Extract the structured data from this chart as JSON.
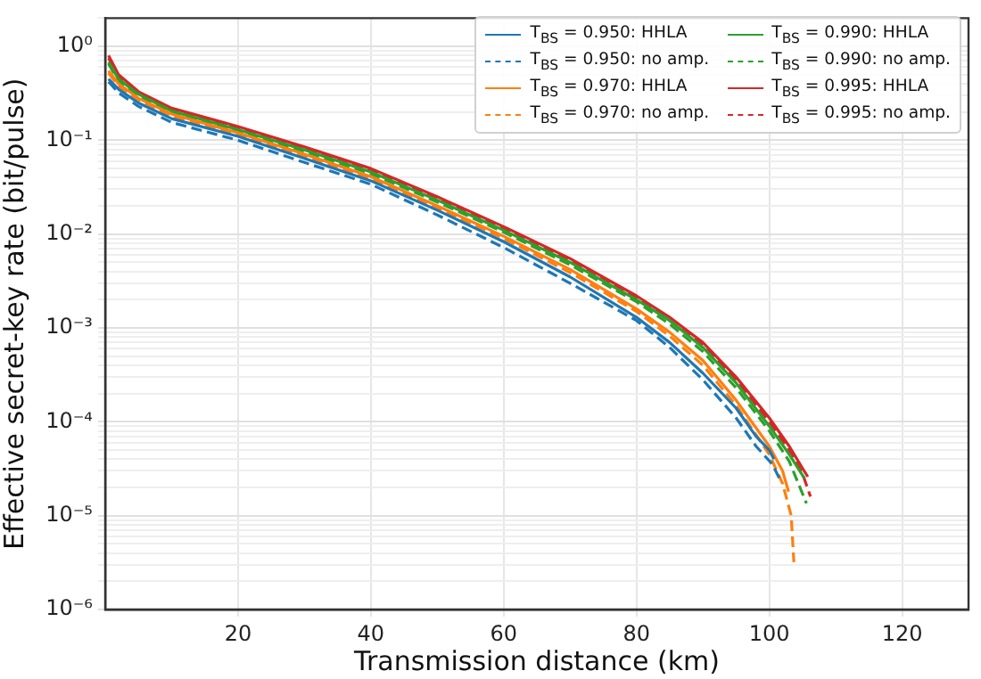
{
  "chart_data": {
    "type": "line",
    "xlabel": "Transmission distance (km)",
    "ylabel": "Effective secret-key rate (bit/pulse)",
    "xlim": [
      0,
      130
    ],
    "xticks": [
      20,
      40,
      60,
      80,
      100,
      120
    ],
    "ylim": [
      1e-06,
      2
    ],
    "log": "y",
    "yticks": [
      {
        "value": 1e-06,
        "label": "10⁻⁶"
      },
      {
        "value": 1e-05,
        "label": "10⁻⁵"
      },
      {
        "value": 0.0001,
        "label": "10⁻⁴"
      },
      {
        "value": 0.001,
        "label": "10⁻³"
      },
      {
        "value": 0.01,
        "label": "10⁻²"
      },
      {
        "value": 0.1,
        "label": "10⁻¹"
      },
      {
        "value": 1,
        "label": "10⁰"
      },
      {
        "value": 2e-06,
        "label": null
      },
      {
        "value": 3e-06,
        "label": null
      },
      {
        "value": 4e-06,
        "label": null
      },
      {
        "value": 5e-06,
        "label": null
      },
      {
        "value": 6e-06,
        "label": null
      },
      {
        "value": 7e-06,
        "label": null
      },
      {
        "value": 8e-06,
        "label": null
      },
      {
        "value": 9e-06,
        "label": null
      },
      {
        "value": 2e-05,
        "label": null
      },
      {
        "value": 3e-05,
        "label": null
      },
      {
        "value": 4e-05,
        "label": null
      },
      {
        "value": 5e-05,
        "label": null
      },
      {
        "value": 6e-05,
        "label": null
      },
      {
        "value": 7e-05,
        "label": null
      },
      {
        "value": 8e-05,
        "label": null
      },
      {
        "value": 9e-05,
        "label": null
      },
      {
        "value": 0.0002,
        "label": null
      },
      {
        "value": 0.0003,
        "label": null
      },
      {
        "value": 0.0004,
        "label": null
      },
      {
        "value": 0.0005,
        "label": null
      },
      {
        "value": 0.0006,
        "label": null
      },
      {
        "value": 0.0007,
        "label": null
      },
      {
        "value": 0.0008,
        "label": null
      },
      {
        "value": 0.0009,
        "label": null
      },
      {
        "value": 0.002,
        "label": null
      },
      {
        "value": 0.003,
        "label": null
      },
      {
        "value": 0.004,
        "label": null
      },
      {
        "value": 0.005,
        "label": null
      },
      {
        "value": 0.006,
        "label": null
      },
      {
        "value": 0.007,
        "label": null
      },
      {
        "value": 0.008,
        "label": null
      },
      {
        "value": 0.009,
        "label": null
      },
      {
        "value": 0.02,
        "label": null
      },
      {
        "value": 0.03,
        "label": null
      },
      {
        "value": 0.04,
        "label": null
      },
      {
        "value": 0.05,
        "label": null
      },
      {
        "value": 0.06,
        "label": null
      },
      {
        "value": 0.07,
        "label": null
      },
      {
        "value": 0.08,
        "label": null
      },
      {
        "value": 0.09,
        "label": null
      },
      {
        "value": 0.2,
        "label": null
      },
      {
        "value": 0.3,
        "label": null
      },
      {
        "value": 0.4,
        "label": null
      },
      {
        "value": 0.5,
        "label": null
      },
      {
        "value": 0.6,
        "label": null
      },
      {
        "value": 0.7,
        "label": null
      },
      {
        "value": 0.8,
        "label": null
      },
      {
        "value": 0.9,
        "label": null
      },
      {
        "value": 2,
        "label": null
      }
    ],
    "grid": true,
    "legend": "top right",
    "marker": "none",
    "series": [
      {
        "name": "T$_{BS}$ = 0.950: HHLA",
        "color": "#1f77b4",
        "line_style": "solid",
        "x": [
          0.5,
          2,
          5,
          10,
          20,
          30,
          40,
          50,
          60,
          70,
          80,
          85,
          90,
          95,
          98,
          100,
          100.7
        ],
        "values": [
          0.45,
          0.35,
          0.25,
          0.17,
          0.11,
          0.064,
          0.037,
          0.018,
          0.0083,
          0.0035,
          0.0013,
          0.0007,
          0.00033,
          0.00014,
          7e-05,
          5e-05,
          4e-05
        ]
      },
      {
        "name": "T$_{BS}$ = 0.950: no amp.",
        "color": "#1f77b4",
        "line_style": "dashed",
        "x": [
          0.5,
          2,
          5,
          10,
          20,
          30,
          40,
          50,
          60,
          70,
          80,
          85,
          90,
          95,
          98,
          100.5,
          101.5
        ],
        "values": [
          0.42,
          0.32,
          0.23,
          0.155,
          0.1,
          0.058,
          0.034,
          0.016,
          0.0072,
          0.003,
          0.0012,
          0.00062,
          0.00028,
          0.00011,
          5.5e-05,
          3.5e-05,
          2.5e-05
        ]
      },
      {
        "name": "T$_{BS}$ = 0.970: HHLA",
        "color": "#ff7f0e",
        "line_style": "solid",
        "x": [
          0.5,
          2,
          5,
          10,
          20,
          30,
          40,
          50,
          60,
          70,
          80,
          85,
          90,
          95,
          100,
          102,
          102.9
        ],
        "values": [
          0.55,
          0.4,
          0.28,
          0.19,
          0.12,
          0.071,
          0.041,
          0.02,
          0.0095,
          0.0042,
          0.0016,
          0.0009,
          0.00045,
          0.00017,
          5.5e-05,
          3e-05,
          1.8e-05
        ]
      },
      {
        "name": "T$_{BS}$ = 0.970: no amp.",
        "color": "#ff7f0e",
        "line_style": "dashed",
        "x": [
          0.5,
          2,
          5,
          10,
          20,
          30,
          40,
          50,
          60,
          70,
          80,
          85,
          90,
          95,
          100,
          102,
          103.3,
          103.7
        ],
        "values": [
          0.52,
          0.38,
          0.27,
          0.18,
          0.115,
          0.068,
          0.039,
          0.019,
          0.009,
          0.0039,
          0.0015,
          0.00082,
          0.0004,
          0.00015,
          4.5e-05,
          2.2e-05,
          1e-05,
          3.2e-06
        ]
      },
      {
        "name": "T$_{BS}$ = 0.990: HHLA",
        "color": "#2ca02c",
        "line_style": "solid",
        "x": [
          0.5,
          2,
          5,
          10,
          20,
          30,
          40,
          50,
          60,
          70,
          80,
          85,
          90,
          95,
          100,
          103,
          105.3
        ],
        "values": [
          0.68,
          0.45,
          0.31,
          0.205,
          0.13,
          0.079,
          0.046,
          0.023,
          0.011,
          0.005,
          0.002,
          0.0012,
          0.00062,
          0.00026,
          9e-05,
          4.5e-05,
          2.5e-05
        ]
      },
      {
        "name": "T$_{BS}$ = 0.990: no amp.",
        "color": "#2ca02c",
        "line_style": "dashed",
        "x": [
          0.5,
          2,
          5,
          10,
          20,
          30,
          40,
          50,
          60,
          70,
          80,
          85,
          90,
          95,
          100,
          103,
          105.6
        ],
        "values": [
          0.65,
          0.43,
          0.3,
          0.2,
          0.125,
          0.076,
          0.044,
          0.022,
          0.0105,
          0.0047,
          0.0019,
          0.0011,
          0.00056,
          0.00023,
          8e-05,
          3.8e-05,
          1.35e-05
        ]
      },
      {
        "name": "T$_{BS}$ = 0.995: HHLA",
        "color": "#d62728",
        "line_style": "solid",
        "x": [
          0.5,
          2,
          5,
          10,
          20,
          30,
          40,
          50,
          60,
          70,
          80,
          85,
          90,
          95,
          100,
          103,
          105,
          105.8
        ],
        "values": [
          0.8,
          0.5,
          0.33,
          0.22,
          0.14,
          0.085,
          0.05,
          0.025,
          0.012,
          0.0055,
          0.0022,
          0.0013,
          0.0007,
          0.0003,
          0.00011,
          5.5e-05,
          3.2e-05,
          2.6e-05
        ]
      },
      {
        "name": "T$_{BS}$ = 0.995: no amp.",
        "color": "#d62728",
        "line_style": "dashed",
        "x": [
          0.5,
          2,
          5,
          10,
          20,
          30,
          40,
          50,
          60,
          70,
          80,
          85,
          90,
          95,
          100,
          103,
          105,
          106.2
        ],
        "values": [
          0.75,
          0.48,
          0.32,
          0.21,
          0.135,
          0.082,
          0.048,
          0.024,
          0.0115,
          0.0053,
          0.0021,
          0.0012,
          0.00065,
          0.00028,
          0.0001,
          5e-05,
          2.8e-05,
          1.6e-05
        ]
      }
    ]
  }
}
